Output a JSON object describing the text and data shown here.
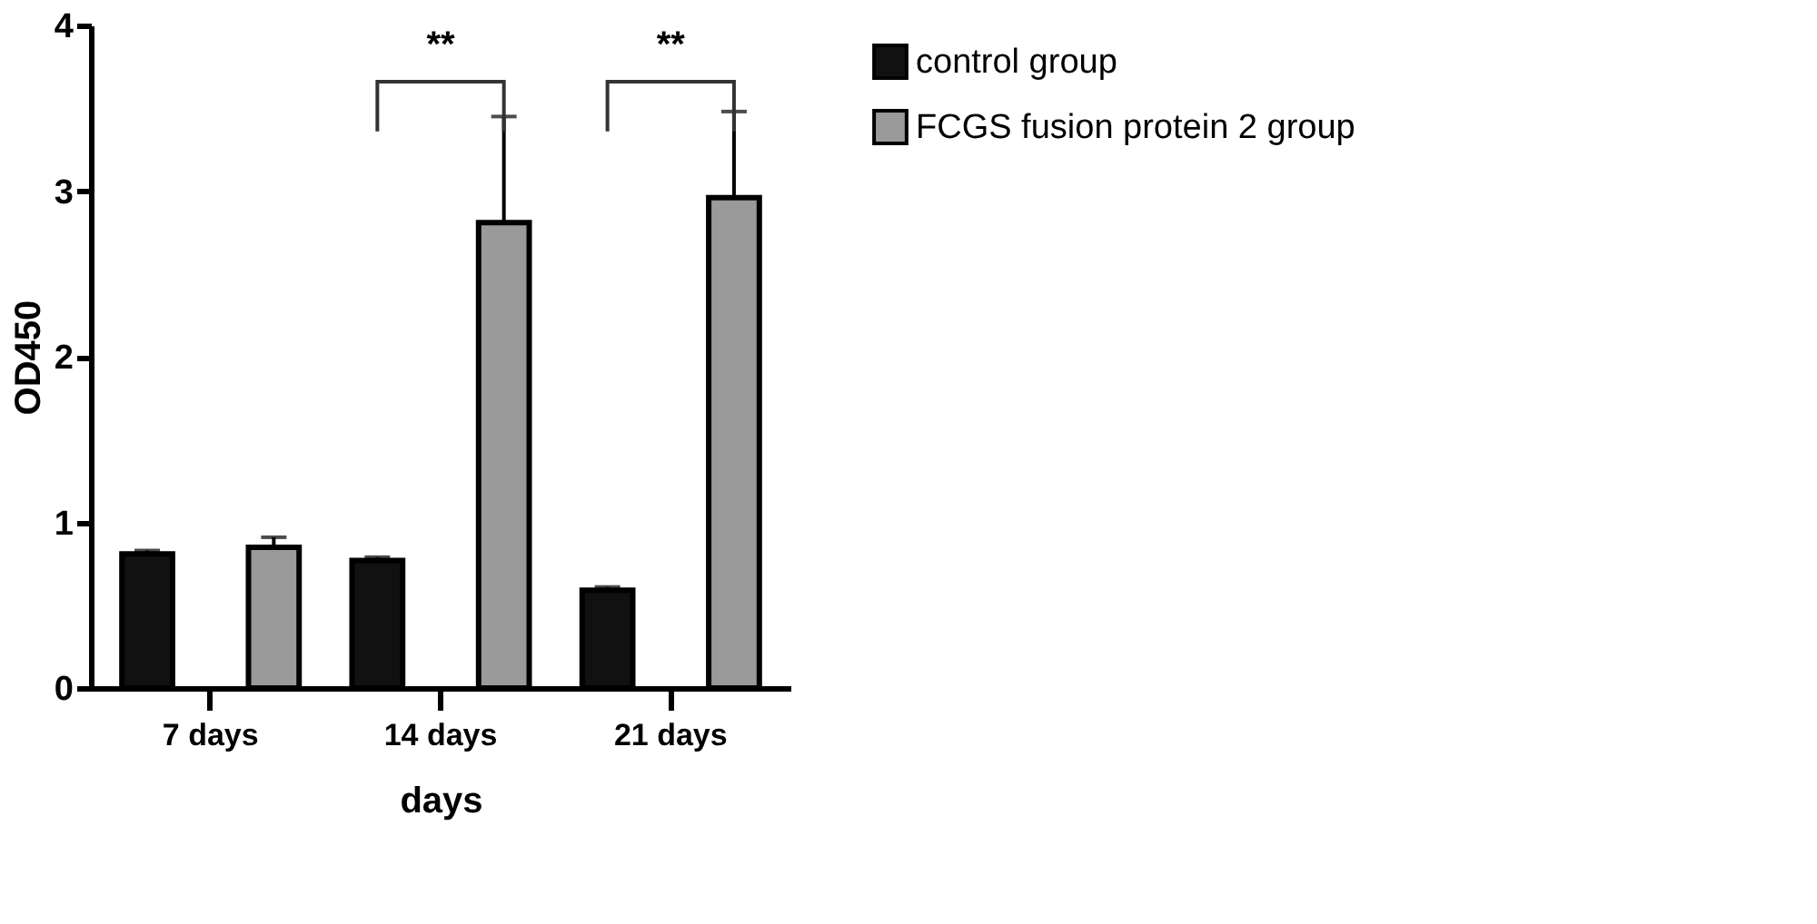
{
  "chart_data": {
    "type": "bar",
    "xlabel": "days",
    "ylabel": "OD450",
    "categories": [
      "7 days",
      "14 days",
      "21 days"
    ],
    "series": [
      {
        "name": "control  group",
        "color": "#111111",
        "values": [
          0.81,
          0.77,
          0.59
        ],
        "errors": [
          [
            0.81,
            0.83
          ],
          [
            0.77,
            0.79
          ],
          [
            0.59,
            0.61
          ]
        ]
      },
      {
        "name": "FCGS fusion protein 2 group",
        "color": "#9a9a9a",
        "values": [
          0.85,
          2.81,
          2.96
        ],
        "errors": [
          [
            0.85,
            0.91
          ],
          [
            2.81,
            3.45
          ],
          [
            2.96,
            3.48
          ]
        ]
      }
    ],
    "ylim": [
      0,
      4
    ],
    "yticks": [
      0,
      1,
      2,
      3,
      4
    ],
    "grid": false,
    "legend": "top right",
    "annotations": [
      "**",
      "**"
    ]
  }
}
